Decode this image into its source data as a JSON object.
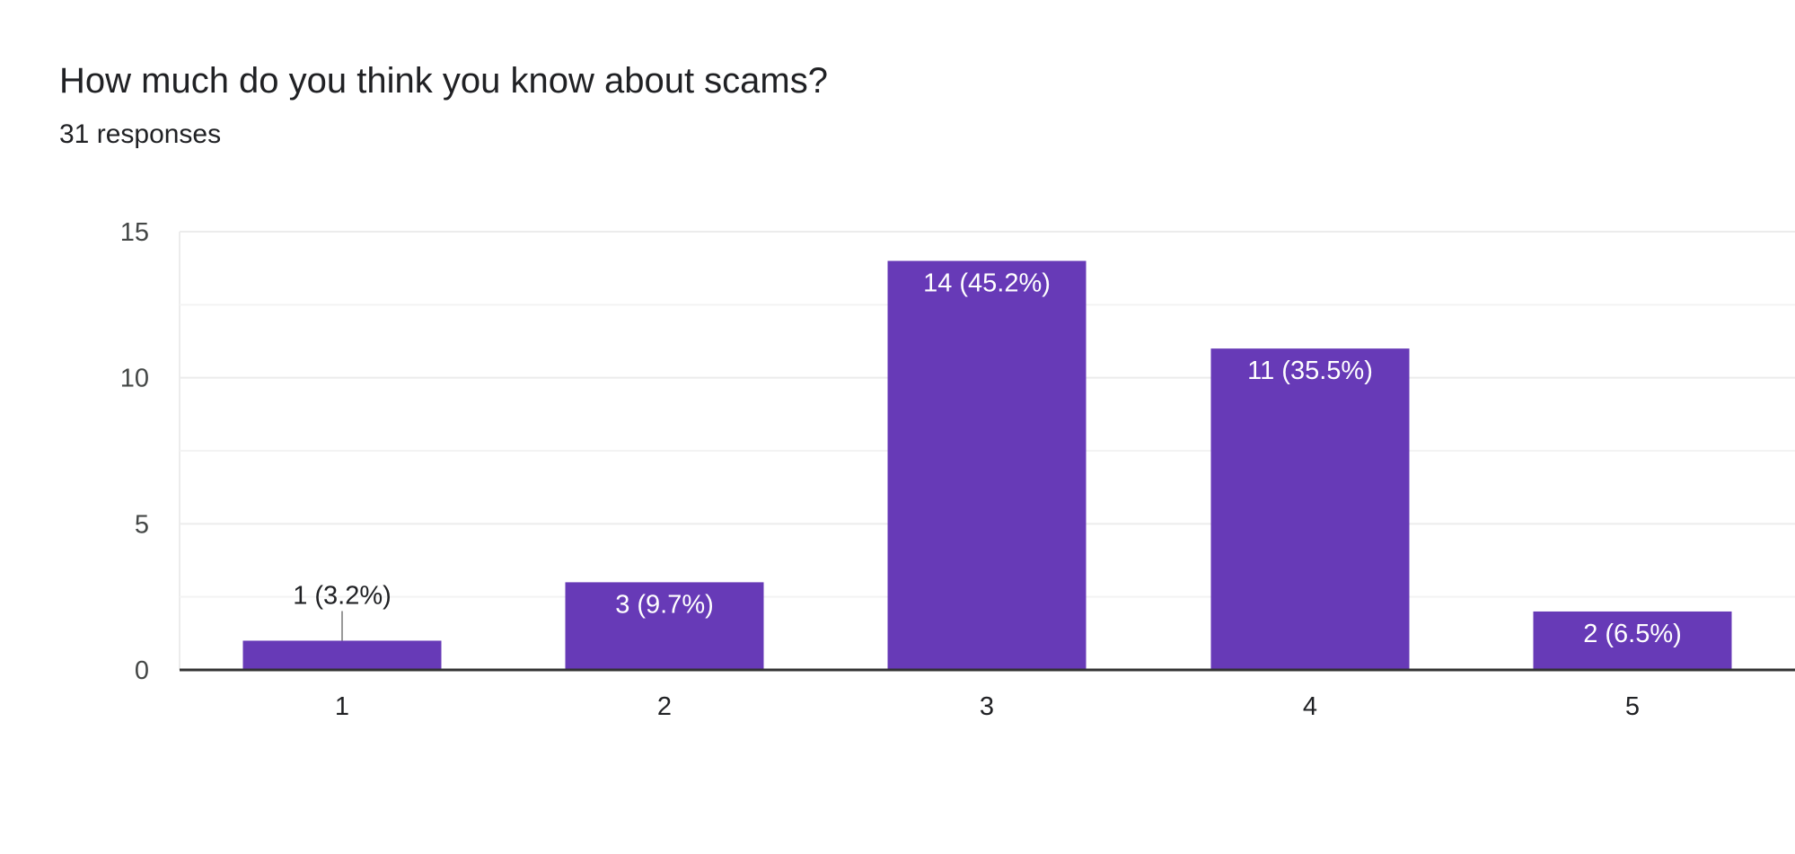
{
  "question": {
    "title": "How much do you think you know about scams?",
    "responses": "31 responses"
  },
  "colors": {
    "bar": "#673ab7",
    "gridline": "#ececec",
    "baseline": "#333333",
    "leader": "#999999"
  },
  "chart_data": {
    "type": "bar",
    "categories": [
      "1",
      "2",
      "3",
      "4",
      "5"
    ],
    "values": [
      1,
      3,
      14,
      11,
      2
    ],
    "data_labels": [
      "1 (3.2%)",
      "3 (9.7%)",
      "14 (45.2%)",
      "11 (35.5%)",
      "2 (6.5%)"
    ],
    "title": "How much do you think you know about scams?",
    "subtitle": "31 responses",
    "xlabel": "",
    "ylabel": "",
    "ylim": [
      0,
      15
    ],
    "yticks": [
      0,
      5,
      10,
      15
    ],
    "grid": true,
    "legend": "none"
  }
}
